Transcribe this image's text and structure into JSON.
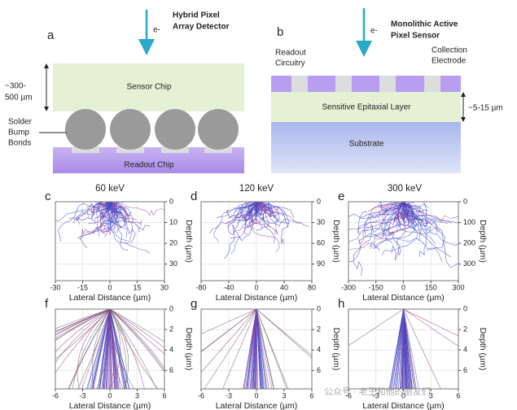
{
  "panel_a": {
    "letter": "a",
    "electron": "e-",
    "title_lines": [
      "Hybrid Pixel",
      "Array Detector"
    ],
    "sensor": "Sensor Chip",
    "readout": "Readout Chip",
    "thickness_lines": [
      "~300-",
      "500 µm"
    ],
    "bump_lines": [
      "Solder",
      "Bump",
      "Bonds"
    ]
  },
  "panel_b": {
    "letter": "b",
    "electron": "e-",
    "title_lines": [
      "Monolithic Active",
      "Pixel Sensor"
    ],
    "readout_lines": [
      "Readout",
      "Circuitry"
    ],
    "electrode_lines": [
      "Collection",
      "Electrode"
    ],
    "epitaxial": "Sensitive Epitaxial Layer",
    "substrate": "Substrate",
    "thickness": "~5-15 µm"
  },
  "energies": [
    "60 keV",
    "120 keV",
    "300 keV"
  ],
  "plots": [
    {
      "letter": "c",
      "x_label": "Lateral Distance (µm)",
      "y_label": "Depth (µm)",
      "xlim": [
        -30,
        30
      ],
      "ylim": [
        0,
        38
      ],
      "xticks": [
        -30,
        -15,
        0,
        15,
        30
      ],
      "yticks": [
        0,
        10,
        20,
        30
      ]
    },
    {
      "letter": "d",
      "x_label": "Lateral Distance (µm)",
      "y_label": "Depth (µm)",
      "xlim": [
        -80,
        80
      ],
      "ylim": [
        0,
        114
      ],
      "xticks": [
        -80,
        -40,
        0,
        40,
        80
      ],
      "yticks": [
        0,
        30,
        60,
        90
      ]
    },
    {
      "letter": "e",
      "x_label": "Lateral Distance (µm)",
      "y_label": "Depth (µm)",
      "xlim": [
        -300,
        300
      ],
      "ylim": [
        0,
        380
      ],
      "xticks": [
        -300,
        -150,
        0,
        150,
        300
      ],
      "yticks": [
        0,
        100,
        200,
        300
      ]
    },
    {
      "letter": "f",
      "x_label": "Lateral Distance (µm)",
      "y_label": "Depth (µm)",
      "xlim": [
        -6,
        6
      ],
      "ylim": [
        0,
        7.8
      ],
      "xticks": [
        -6,
        -3,
        0,
        3,
        6
      ],
      "yticks": [
        0,
        2,
        4,
        6
      ]
    },
    {
      "letter": "g",
      "x_label": "Lateral Distance (µm)",
      "y_label": "Depth (µm)",
      "xlim": [
        -6,
        6
      ],
      "ylim": [
        0,
        7.8
      ],
      "xticks": [
        -6,
        -3,
        0,
        3,
        6
      ],
      "yticks": [
        0,
        2,
        4,
        6
      ]
    },
    {
      "letter": "h",
      "x_label": "Lateral Distance (µm)",
      "y_label": "Depth (µm)",
      "xlim": [
        -6,
        6
      ],
      "ylim": [
        0,
        7.8
      ],
      "xticks": [
        -6,
        -3,
        0,
        3,
        6
      ],
      "yticks": [
        0,
        2,
        4,
        6
      ]
    }
  ],
  "watermark": "公众号 · 老王和他的朋友们"
}
